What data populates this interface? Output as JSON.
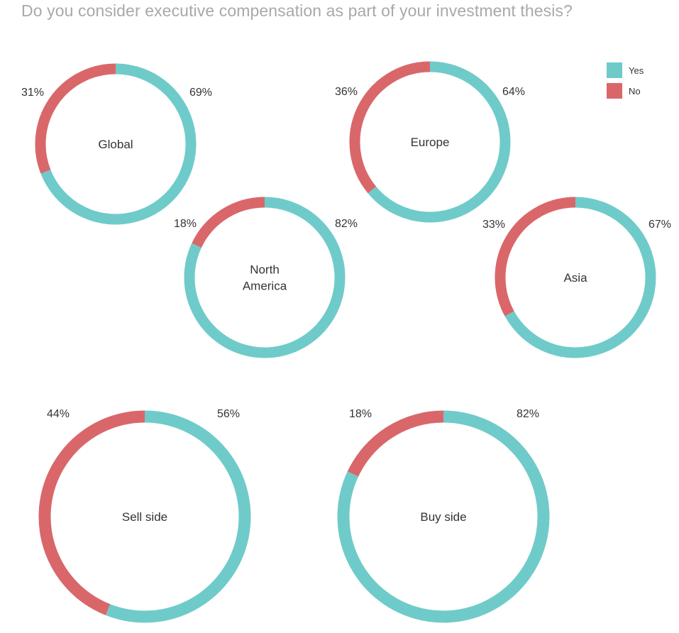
{
  "title": "Do you consider executive compensation as part of your investment thesis?",
  "colors": {
    "yes": "#6fcbca",
    "no": "#d9676a"
  },
  "legend": [
    {
      "label": "Yes",
      "color": "#6fcbca"
    },
    {
      "label": "No",
      "color": "#d9676a"
    }
  ],
  "chart_data": [
    {
      "type": "pie",
      "label": [
        "Global"
      ],
      "categories": [
        "Yes",
        "No"
      ],
      "values": [
        69,
        31
      ],
      "labels": [
        "69%",
        "31%"
      ]
    },
    {
      "type": "pie",
      "label": [
        "Europe"
      ],
      "categories": [
        "Yes",
        "No"
      ],
      "values": [
        64,
        36
      ],
      "labels": [
        "64%",
        "36%"
      ]
    },
    {
      "type": "pie",
      "label": [
        "North",
        "America"
      ],
      "categories": [
        "Yes",
        "No"
      ],
      "values": [
        82,
        18
      ],
      "labels": [
        "82%",
        "18%"
      ]
    },
    {
      "type": "pie",
      "label": [
        "Asia"
      ],
      "categories": [
        "Yes",
        "No"
      ],
      "values": [
        67,
        33
      ],
      "labels": [
        "67%",
        "33%"
      ]
    },
    {
      "type": "pie",
      "label": [
        "Sell side"
      ],
      "categories": [
        "Yes",
        "No"
      ],
      "values": [
        56,
        44
      ],
      "labels": [
        "56%",
        "44%"
      ]
    },
    {
      "type": "pie",
      "label": [
        "Buy side"
      ],
      "categories": [
        "Yes",
        "No"
      ],
      "values": [
        82,
        18
      ],
      "labels": [
        "82%",
        "18%"
      ]
    }
  ]
}
